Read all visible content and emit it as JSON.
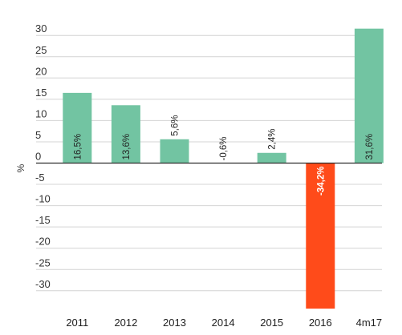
{
  "chart_data": {
    "type": "bar",
    "categories": [
      "2011",
      "2012",
      "2013",
      "2014",
      "2015",
      "2016",
      "4m17"
    ],
    "values": [
      16.5,
      13.6,
      5.6,
      -0.6,
      2.4,
      -34.2,
      31.6
    ],
    "data_labels": [
      "16,5%",
      "13,6%",
      "5,6%",
      "-0,6%",
      "2,4%",
      "-34,2%",
      "31,6%"
    ],
    "colors": [
      "#72c4a2",
      "#72c4a2",
      "#72c4a2",
      "#72c4a2",
      "#72c4a2",
      "#ff4b1a",
      "#72c4a2"
    ],
    "title": "",
    "xlabel": "",
    "ylabel": "%",
    "ylim": [
      -34.2,
      31.6
    ],
    "yticks": [
      30,
      25,
      20,
      15,
      10,
      5,
      0,
      -5,
      -10,
      -15,
      -20,
      -25,
      -30
    ],
    "grid": true
  }
}
